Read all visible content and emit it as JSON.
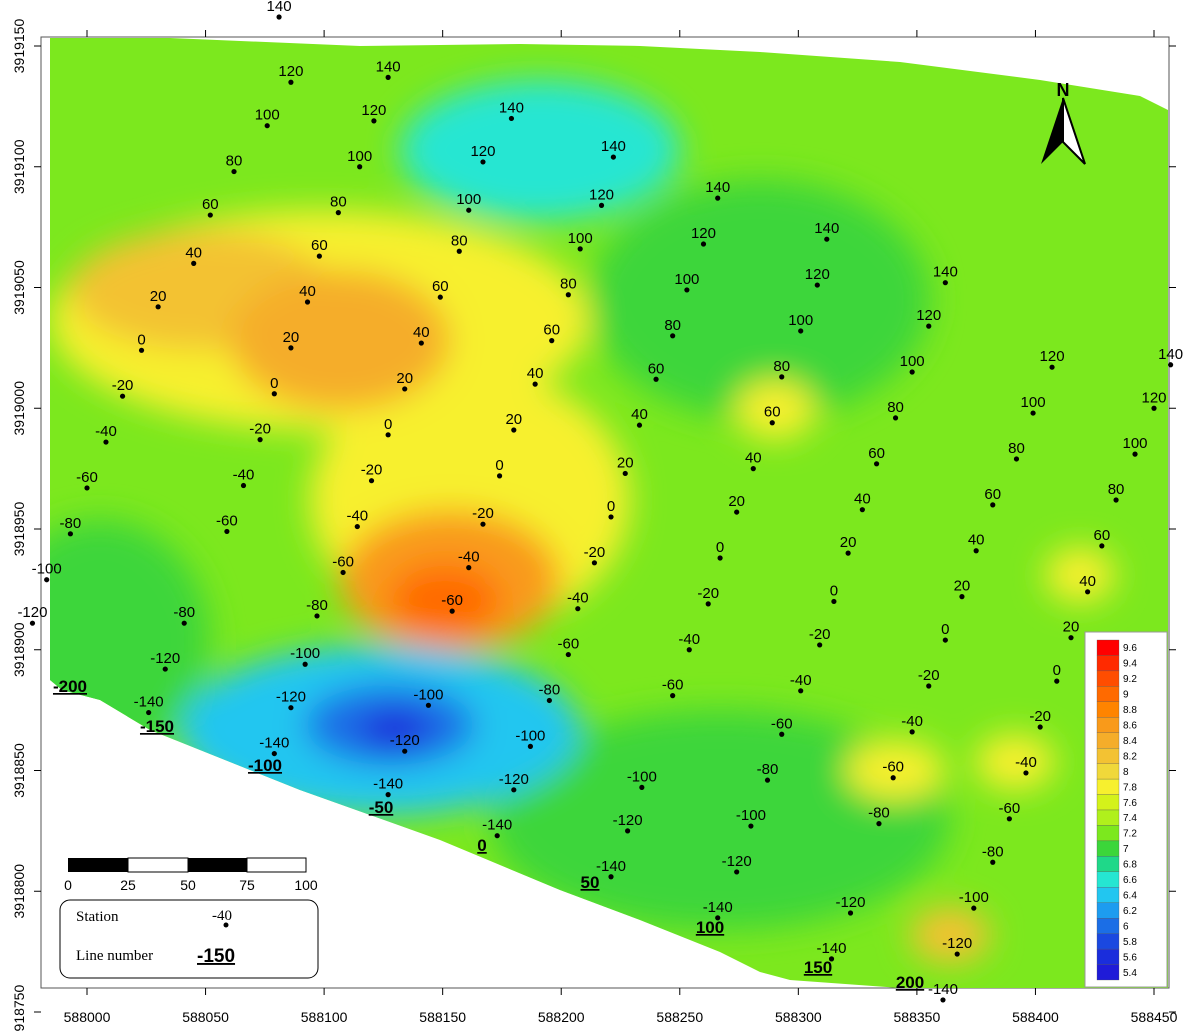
{
  "map": {
    "axes": {
      "x_ticks": [
        "588000",
        "588050",
        "588100",
        "588150",
        "588200",
        "588250",
        "588300",
        "588350",
        "588400",
        "588450"
      ],
      "y_ticks": [
        "3918750",
        "3918800",
        "3918850",
        "3918900",
        "3918950",
        "3919000",
        "3919050",
        "3919100",
        "3919150"
      ]
    },
    "north_arrow_label": "N",
    "color_scale": {
      "labels": [
        "9.6",
        "9.4",
        "9.2",
        "9",
        "8.8",
        "8.6",
        "8.4",
        "8.2",
        "8",
        "7.8",
        "7.6",
        "7.4",
        "7.2",
        "7",
        "6.8",
        "6.6",
        "6.4",
        "6.2",
        "6",
        "5.8",
        "5.6",
        "5.4"
      ],
      "colors": [
        "#ff0000",
        "#ff2a00",
        "#ff4d00",
        "#ff6a00",
        "#ff8400",
        "#f99a1a",
        "#f5ad2a",
        "#f3c233",
        "#f0d83a",
        "#f7f02e",
        "#d4f21a",
        "#b0f01c",
        "#7ce81e",
        "#3cd63a",
        "#1fd889",
        "#25e6d2",
        "#22c6f0",
        "#1d9cf0",
        "#1b6ee6",
        "#1a48e0",
        "#1a2ddc",
        "#1f1bd8"
      ]
    },
    "scale_bar": {
      "labels": [
        "0",
        "25",
        "50",
        "75",
        "100"
      ]
    },
    "inset_legend": {
      "station_label": "Station",
      "station_example": "-40",
      "line_label": "Line number",
      "line_example": "-150"
    },
    "line_numbers": [
      "-200",
      "-150",
      "-100",
      "-50",
      "0",
      "50",
      "100",
      "150",
      "200"
    ],
    "stations": [
      {
        "label": "140",
        "x": 588081,
        "y": 3919162
      },
      {
        "label": "120",
        "x": 588086,
        "y": 3919135
      },
      {
        "label": "100",
        "x": 588076,
        "y": 3919117
      },
      {
        "label": "80",
        "x": 588062,
        "y": 3919098
      },
      {
        "label": "60",
        "x": 588052,
        "y": 3919080
      },
      {
        "label": "40",
        "x": 588045,
        "y": 3919060
      },
      {
        "label": "20",
        "x": 588030,
        "y": 3919042
      },
      {
        "label": "0",
        "x": 588023,
        "y": 3919024
      },
      {
        "label": "-20",
        "x": 588015,
        "y": 3919005
      },
      {
        "label": "-40",
        "x": 588008,
        "y": 3918986
      },
      {
        "label": "-60",
        "x": 588000,
        "y": 3918967
      },
      {
        "label": "-80",
        "x": 587993,
        "y": 3918948
      },
      {
        "label": "-100",
        "x": 587983,
        "y": 3918929
      },
      {
        "label": "-120",
        "x": 587977,
        "y": 3918911
      },
      {
        "label": "-140",
        "x": 587968,
        "y": 3918892
      },
      {
        "label": "140",
        "x": 588127,
        "y": 3919137
      },
      {
        "label": "120",
        "x": 588121,
        "y": 3919119
      },
      {
        "label": "100",
        "x": 588115,
        "y": 3919100
      },
      {
        "label": "80",
        "x": 588106,
        "y": 3919081
      },
      {
        "label": "60",
        "x": 588098,
        "y": 3919063
      },
      {
        "label": "40",
        "x": 588093,
        "y": 3919044
      },
      {
        "label": "20",
        "x": 588086,
        "y": 3919025
      },
      {
        "label": "0",
        "x": 588079,
        "y": 3919006
      },
      {
        "label": "-20",
        "x": 588073,
        "y": 3918987
      },
      {
        "label": "-40",
        "x": 588066,
        "y": 3918968
      },
      {
        "label": "-60",
        "x": 588059,
        "y": 3918949
      },
      {
        "label": "-80",
        "x": 588041,
        "y": 3918911
      },
      {
        "label": "-120",
        "x": 588033,
        "y": 3918892
      },
      {
        "label": "-140",
        "x": 588026,
        "y": 3918874
      },
      {
        "label": "140",
        "x": 588179,
        "y": 3919120
      },
      {
        "label": "120",
        "x": 588167,
        "y": 3919102
      },
      {
        "label": "100",
        "x": 588161,
        "y": 3919082
      },
      {
        "label": "80",
        "x": 588157,
        "y": 3919065
      },
      {
        "label": "60",
        "x": 588149,
        "y": 3919046
      },
      {
        "label": "40",
        "x": 588141,
        "y": 3919027
      },
      {
        "label": "20",
        "x": 588134,
        "y": 3919008
      },
      {
        "label": "0",
        "x": 588127,
        "y": 3918989
      },
      {
        "label": "-20",
        "x": 588120,
        "y": 3918970
      },
      {
        "label": "-40",
        "x": 588114,
        "y": 3918951
      },
      {
        "label": "-60",
        "x": 588108,
        "y": 3918932
      },
      {
        "label": "-80",
        "x": 588097,
        "y": 3918914
      },
      {
        "label": "-100",
        "x": 588092,
        "y": 3918894
      },
      {
        "label": "-120",
        "x": 588086,
        "y": 3918876
      },
      {
        "label": "-140",
        "x": 588079,
        "y": 3918857
      },
      {
        "label": "140",
        "x": 588222,
        "y": 3919104
      },
      {
        "label": "120",
        "x": 588217,
        "y": 3919084
      },
      {
        "label": "100",
        "x": 588208,
        "y": 3919066
      },
      {
        "label": "80",
        "x": 588203,
        "y": 3919047
      },
      {
        "label": "60",
        "x": 588196,
        "y": 3919028
      },
      {
        "label": "40",
        "x": 588189,
        "y": 3919010
      },
      {
        "label": "20",
        "x": 588180,
        "y": 3918991
      },
      {
        "label": "0",
        "x": 588174,
        "y": 3918972
      },
      {
        "label": "-20",
        "x": 588167,
        "y": 3918952
      },
      {
        "label": "-40",
        "x": 588161,
        "y": 3918934
      },
      {
        "label": "-60",
        "x": 588154,
        "y": 3918916
      },
      {
        "label": "-60",
        "x": 588203,
        "y": 3918898
      },
      {
        "label": "-80",
        "x": 588195,
        "y": 3918879
      },
      {
        "label": "-100",
        "x": 588144,
        "y": 3918877
      },
      {
        "label": "-120",
        "x": 588134,
        "y": 3918858
      },
      {
        "label": "-100",
        "x": 588187,
        "y": 3918860
      },
      {
        "label": "-140",
        "x": 588127,
        "y": 3918840
      },
      {
        "label": "-120",
        "x": 588180,
        "y": 3918842
      },
      {
        "label": "-140",
        "x": 588173,
        "y": 3918823
      },
      {
        "label": "140",
        "x": 588266,
        "y": 3919087
      },
      {
        "label": "120",
        "x": 588260,
        "y": 3919068
      },
      {
        "label": "100",
        "x": 588253,
        "y": 3919049
      },
      {
        "label": "80",
        "x": 588247,
        "y": 3919030
      },
      {
        "label": "60",
        "x": 588240,
        "y": 3919012
      },
      {
        "label": "40",
        "x": 588233,
        "y": 3918993
      },
      {
        "label": "20",
        "x": 588227,
        "y": 3918973
      },
      {
        "label": "0",
        "x": 588221,
        "y": 3918955
      },
      {
        "label": "-20",
        "x": 588214,
        "y": 3918936
      },
      {
        "label": "-40",
        "x": 588207,
        "y": 3918917
      },
      {
        "label": "-20",
        "x": 588262,
        "y": 3918919
      },
      {
        "label": "-40",
        "x": 588254,
        "y": 3918900
      },
      {
        "label": "-60",
        "x": 588247,
        "y": 3918881
      },
      {
        "label": "-100",
        "x": 588234,
        "y": 3918843
      },
      {
        "label": "-120",
        "x": 588228,
        "y": 3918825
      },
      {
        "label": "-140",
        "x": 588221,
        "y": 3918806
      },
      {
        "label": "140",
        "x": 588312,
        "y": 3919070
      },
      {
        "label": "120",
        "x": 588308,
        "y": 3919051
      },
      {
        "label": "100",
        "x": 588301,
        "y": 3919032
      },
      {
        "label": "80",
        "x": 588293,
        "y": 3919013
      },
      {
        "label": "60",
        "x": 588289,
        "y": 3918994
      },
      {
        "label": "40",
        "x": 588281,
        "y": 3918975
      },
      {
        "label": "20",
        "x": 588274,
        "y": 3918957
      },
      {
        "label": "0",
        "x": 588267,
        "y": 3918938
      },
      {
        "label": "0",
        "x": 588315,
        "y": 3918920
      },
      {
        "label": "-20",
        "x": 588309,
        "y": 3918902
      },
      {
        "label": "-40",
        "x": 588301,
        "y": 3918883
      },
      {
        "label": "-60",
        "x": 588293,
        "y": 3918865
      },
      {
        "label": "-80",
        "x": 588287,
        "y": 3918846
      },
      {
        "label": "-100",
        "x": 588280,
        "y": 3918827
      },
      {
        "label": "-120",
        "x": 588274,
        "y": 3918808
      },
      {
        "label": "-140",
        "x": 588266,
        "y": 3918789
      },
      {
        "label": "140",
        "x": 588362,
        "y": 3919052
      },
      {
        "label": "120",
        "x": 588355,
        "y": 3919034
      },
      {
        "label": "100",
        "x": 588348,
        "y": 3919015
      },
      {
        "label": "80",
        "x": 588341,
        "y": 3918996
      },
      {
        "label": "60",
        "x": 588333,
        "y": 3918977
      },
      {
        "label": "40",
        "x": 588327,
        "y": 3918958
      },
      {
        "label": "20",
        "x": 588321,
        "y": 3918940
      },
      {
        "label": "0",
        "x": 588362,
        "y": 3918904
      },
      {
        "label": "-20",
        "x": 588355,
        "y": 3918885
      },
      {
        "label": "-40",
        "x": 588348,
        "y": 3918866
      },
      {
        "label": "-60",
        "x": 588340,
        "y": 3918847
      },
      {
        "label": "-80",
        "x": 588334,
        "y": 3918828
      },
      {
        "label": "-120",
        "x": 588322,
        "y": 3918791
      },
      {
        "label": "-140",
        "x": 588314,
        "y": 3918772
      },
      {
        "label": "120",
        "x": 588407,
        "y": 3919017
      },
      {
        "label": "100",
        "x": 588399,
        "y": 3918998
      },
      {
        "label": "80",
        "x": 588392,
        "y": 3918979
      },
      {
        "label": "60",
        "x": 588382,
        "y": 3918960
      },
      {
        "label": "40",
        "x": 588375,
        "y": 3918941
      },
      {
        "label": "20",
        "x": 588369,
        "y": 3918922
      },
      {
        "label": "-40",
        "x": 588396,
        "y": 3918849
      },
      {
        "label": "-60",
        "x": 588389,
        "y": 3918830
      },
      {
        "label": "-80",
        "x": 588382,
        "y": 3918812
      },
      {
        "label": "-100",
        "x": 588374,
        "y": 3918793
      },
      {
        "label": "-120",
        "x": 588367,
        "y": 3918774
      },
      {
        "label": "-140",
        "x": 588361,
        "y": 3918755
      },
      {
        "label": "140",
        "x": 588457,
        "y": 3919018
      },
      {
        "label": "120",
        "x": 588450,
        "y": 3919000
      },
      {
        "label": "100",
        "x": 588442,
        "y": 3918981
      },
      {
        "label": "80",
        "x": 588434,
        "y": 3918962
      },
      {
        "label": "60",
        "x": 588428,
        "y": 3918943
      },
      {
        "label": "40",
        "x": 588422,
        "y": 3918924
      },
      {
        "label": "20",
        "x": 588415,
        "y": 3918905
      },
      {
        "label": "0",
        "x": 588409,
        "y": 3918887
      },
      {
        "label": "-20",
        "x": 588402,
        "y": 3918868
      }
    ]
  }
}
